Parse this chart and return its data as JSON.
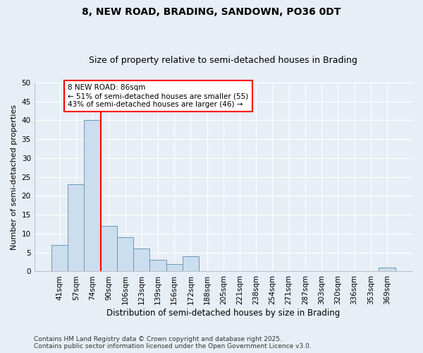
{
  "title1": "8, NEW ROAD, BRADING, SANDOWN, PO36 0DT",
  "title2": "Size of property relative to semi-detached houses in Brading",
  "xlabel": "Distribution of semi-detached houses by size in Brading",
  "ylabel": "Number of semi-detached properties",
  "categories": [
    "41sqm",
    "57sqm",
    "74sqm",
    "90sqm",
    "106sqm",
    "123sqm",
    "139sqm",
    "156sqm",
    "172sqm",
    "188sqm",
    "205sqm",
    "221sqm",
    "238sqm",
    "254sqm",
    "271sqm",
    "287sqm",
    "303sqm",
    "320sqm",
    "336sqm",
    "353sqm",
    "369sqm"
  ],
  "values": [
    7,
    23,
    40,
    12,
    9,
    6,
    3,
    2,
    4,
    0,
    0,
    0,
    0,
    0,
    0,
    0,
    0,
    0,
    0,
    0,
    1
  ],
  "bar_color": "#ccdded",
  "bar_edge_color": "#6699bb",
  "vline_color": "red",
  "vline_x_index": 3,
  "ylim": [
    0,
    50
  ],
  "yticks": [
    0,
    5,
    10,
    15,
    20,
    25,
    30,
    35,
    40,
    45,
    50
  ],
  "annotation_title": "8 NEW ROAD: 86sqm",
  "annotation_line1": "← 51% of semi-detached houses are smaller (55)",
  "annotation_line2": "43% of semi-detached houses are larger (46) →",
  "footnote": "Contains HM Land Registry data © Crown copyright and database right 2025.\nContains public sector information licensed under the Open Government Licence v3.0.",
  "background_color": "#e8eef6",
  "plot_background": "#e8eef6",
  "grid_color": "white",
  "title1_fontsize": 10,
  "title2_fontsize": 9,
  "xlabel_fontsize": 8.5,
  "ylabel_fontsize": 8,
  "tick_fontsize": 7.5,
  "footnote_fontsize": 6.5,
  "annotation_fontsize": 7.5
}
